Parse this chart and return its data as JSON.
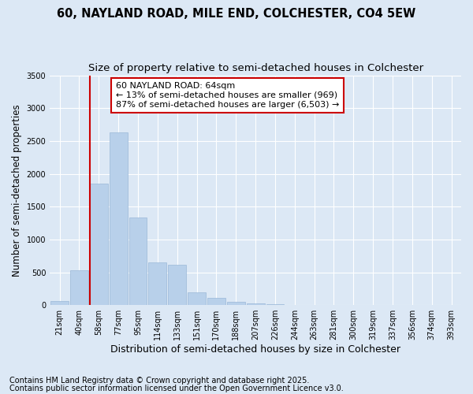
{
  "title1": "60, NAYLAND ROAD, MILE END, COLCHESTER, CO4 5EW",
  "title2": "Size of property relative to semi-detached houses in Colchester",
  "xlabel": "Distribution of semi-detached houses by size in Colchester",
  "ylabel": "Number of semi-detached properties",
  "categories": [
    "21sqm",
    "40sqm",
    "58sqm",
    "77sqm",
    "95sqm",
    "114sqm",
    "133sqm",
    "151sqm",
    "170sqm",
    "188sqm",
    "207sqm",
    "226sqm",
    "244sqm",
    "263sqm",
    "281sqm",
    "300sqm",
    "319sqm",
    "337sqm",
    "356sqm",
    "374sqm",
    "393sqm"
  ],
  "values": [
    60,
    530,
    1850,
    2630,
    1330,
    650,
    620,
    195,
    110,
    55,
    30,
    20,
    0,
    0,
    0,
    0,
    0,
    0,
    0,
    0,
    0
  ],
  "bar_color": "#b8d0ea",
  "bar_edge_color": "#9ab8d8",
  "vline_color": "#cc0000",
  "vline_x_index": 2,
  "ylim": [
    0,
    3500
  ],
  "yticks": [
    0,
    500,
    1000,
    1500,
    2000,
    2500,
    3000,
    3500
  ],
  "annotation_title": "60 NAYLAND ROAD: 64sqm",
  "annotation_line1": "← 13% of semi-detached houses are smaller (969)",
  "annotation_line2": "87% of semi-detached houses are larger (6,503) →",
  "annotation_box_color": "#cc0000",
  "footer1": "Contains HM Land Registry data © Crown copyright and database right 2025.",
  "footer2": "Contains public sector information licensed under the Open Government Licence v3.0.",
  "bg_color": "#dce8f5",
  "plot_bg_color": "#dce8f5",
  "grid_color": "#ffffff",
  "title_fontsize": 10.5,
  "subtitle_fontsize": 9.5,
  "tick_fontsize": 7,
  "ylabel_fontsize": 8.5,
  "xlabel_fontsize": 9,
  "footer_fontsize": 7,
  "annotation_fontsize": 8
}
